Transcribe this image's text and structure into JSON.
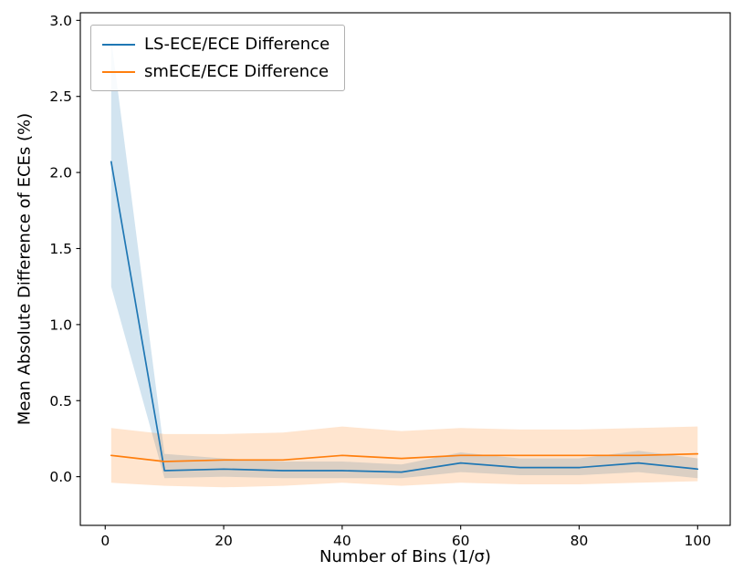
{
  "chart_data": {
    "type": "line",
    "title": "",
    "xlabel": "Number of Bins (1/σ)",
    "ylabel": "Mean Absolute Difference of ECEs (%)",
    "xlim": [
      -4.2,
      105.5
    ],
    "ylim": [
      -0.32,
      3.05
    ],
    "xticks": [
      0,
      20,
      40,
      60,
      80,
      100
    ],
    "xtick_labels": [
      "0",
      "20",
      "40",
      "60",
      "80",
      "100"
    ],
    "yticks": [
      0.0,
      0.5,
      1.0,
      1.5,
      2.0,
      2.5,
      3.0
    ],
    "ytick_labels": [
      "0.0",
      "0.5",
      "1.0",
      "1.5",
      "2.0",
      "2.5",
      "3.0"
    ],
    "grid": false,
    "legend_position": "upper-left",
    "background_color": "#ffffff",
    "axes_color": "#000000",
    "x": [
      1,
      10,
      20,
      30,
      40,
      50,
      60,
      70,
      80,
      90,
      100
    ],
    "series": [
      {
        "name": "LS-ECE/ECE Difference",
        "color": "#1f77b4",
        "values": [
          2.07,
          0.04,
          0.05,
          0.04,
          0.04,
          0.03,
          0.09,
          0.06,
          0.06,
          0.09,
          0.05
        ],
        "band_lower": [
          1.25,
          -0.01,
          0.0,
          -0.01,
          -0.01,
          -0.01,
          0.03,
          0.01,
          0.01,
          0.03,
          -0.01
        ],
        "band_upper": [
          2.88,
          0.15,
          0.12,
          0.1,
          0.1,
          0.08,
          0.16,
          0.12,
          0.12,
          0.17,
          0.12
        ],
        "band_opacity": 0.2
      },
      {
        "name": "smECE/ECE Difference",
        "color": "#ff7f0e",
        "values": [
          0.14,
          0.1,
          0.11,
          0.11,
          0.14,
          0.12,
          0.14,
          0.14,
          0.14,
          0.14,
          0.15
        ],
        "band_lower": [
          -0.04,
          -0.06,
          -0.07,
          -0.06,
          -0.04,
          -0.06,
          -0.04,
          -0.05,
          -0.05,
          -0.04,
          -0.03
        ],
        "band_upper": [
          0.32,
          0.28,
          0.28,
          0.29,
          0.33,
          0.3,
          0.32,
          0.31,
          0.31,
          0.32,
          0.33
        ],
        "band_opacity": 0.2
      }
    ]
  }
}
